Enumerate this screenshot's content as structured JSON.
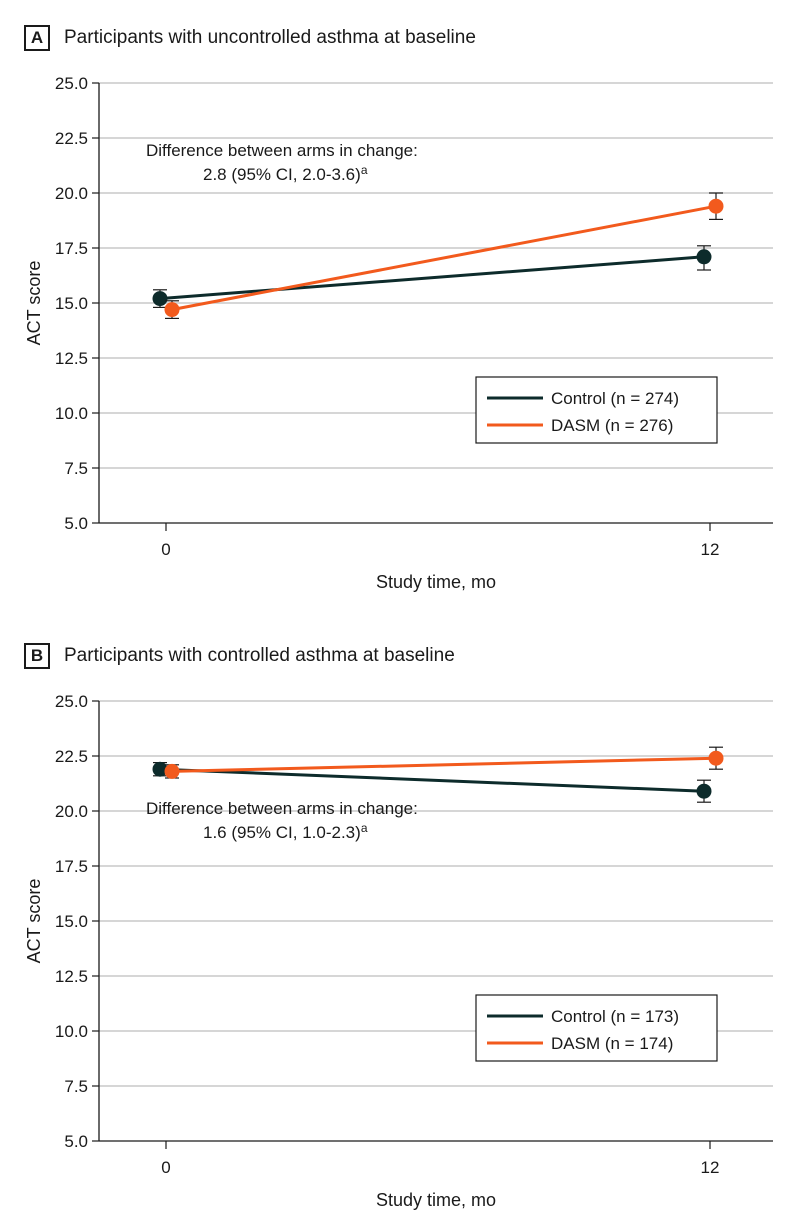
{
  "chart_data": [
    {
      "type": "line",
      "panel_label": "A",
      "title": "Participants with uncontrolled asthma at baseline",
      "xlabel": "Study time, mo",
      "ylabel": "ACT score",
      "ylim": [
        5.0,
        25.0
      ],
      "yticks": [
        "5.0",
        "7.5",
        "10.0",
        "12.5",
        "15.0",
        "17.5",
        "20.0",
        "22.5",
        "25.0"
      ],
      "xticks": [
        "0",
        "12"
      ],
      "x": [
        0,
        12
      ],
      "grid": true,
      "legend_position": "bottom-right",
      "annotation": {
        "line1": "Difference between arms in change:",
        "line2": "2.8 (95% CI, 2.0-3.6)",
        "superscript": "a"
      },
      "series": [
        {
          "name": "Control (n = 274)",
          "color": "#0d2b2b",
          "values": [
            15.2,
            17.1
          ],
          "ci_low": [
            14.8,
            16.5
          ],
          "ci_high": [
            15.6,
            17.6
          ]
        },
        {
          "name": "DASM (n = 276)",
          "color": "#f25a1d",
          "values": [
            14.7,
            19.4
          ],
          "ci_low": [
            14.3,
            18.8
          ],
          "ci_high": [
            15.1,
            20.0
          ]
        }
      ]
    },
    {
      "type": "line",
      "panel_label": "B",
      "title": "Participants with controlled asthma at baseline",
      "xlabel": "Study time, mo",
      "ylabel": "ACT score",
      "ylim": [
        5.0,
        25.0
      ],
      "yticks": [
        "5.0",
        "7.5",
        "10.0",
        "12.5",
        "15.0",
        "17.5",
        "20.0",
        "22.5",
        "25.0"
      ],
      "xticks": [
        "0",
        "12"
      ],
      "x": [
        0,
        12
      ],
      "grid": true,
      "legend_position": "bottom-right",
      "annotation": {
        "line1": "Difference between arms in change:",
        "line2": "1.6 (95% CI, 1.0-2.3)",
        "superscript": "a"
      },
      "series": [
        {
          "name": "Control (n = 173)",
          "color": "#0d2b2b",
          "values": [
            21.9,
            20.9
          ],
          "ci_low": [
            21.6,
            20.4
          ],
          "ci_high": [
            22.2,
            21.4
          ]
        },
        {
          "name": "DASM (n = 174)",
          "color": "#f25a1d",
          "values": [
            21.8,
            22.4
          ],
          "ci_low": [
            21.5,
            21.9
          ],
          "ci_high": [
            22.1,
            22.9
          ]
        }
      ]
    }
  ]
}
